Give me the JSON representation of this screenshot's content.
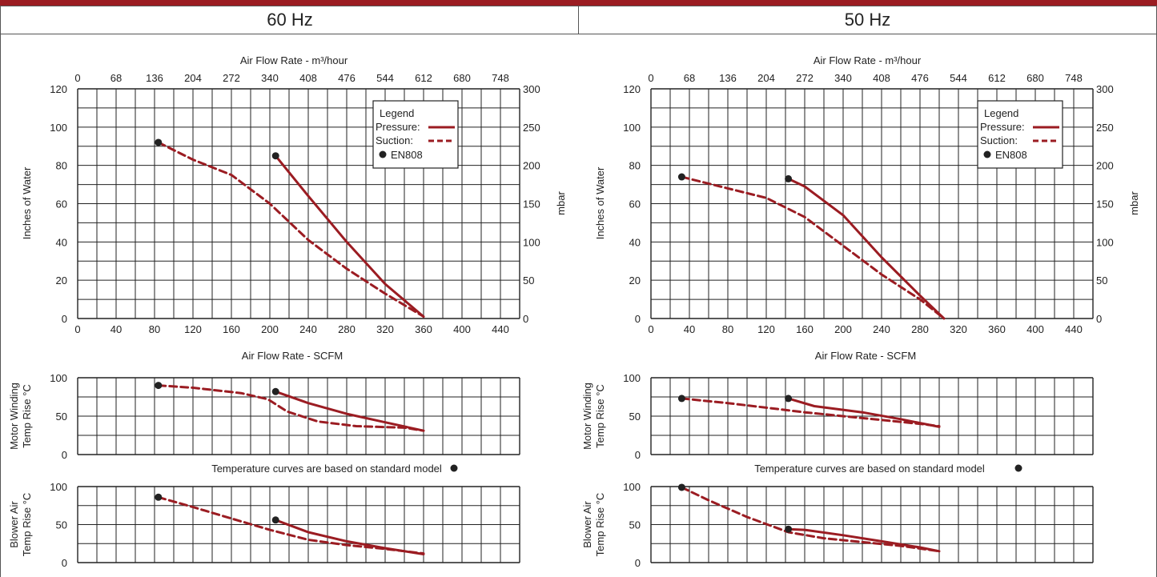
{
  "header": {
    "left_title": "60 Hz",
    "right_title": "50 Hz"
  },
  "colors": {
    "curve": "#9b1c22",
    "grid": "#222222",
    "marker": "#222222"
  },
  "chart_data": [
    {
      "panel": "60 Hz",
      "type": "line",
      "top_axis_label": "Air Flow Rate - m³/hour",
      "top_ticks": [
        "0",
        "68",
        "136",
        "204",
        "272",
        "340",
        "408",
        "476",
        "544",
        "612",
        "680",
        "748"
      ],
      "bottom_axis_label": "Air Flow Rate - SCFM",
      "bottom_ticks": [
        "0",
        "40",
        "80",
        "120",
        "160",
        "200",
        "240",
        "280",
        "320",
        "360",
        "400",
        "440"
      ],
      "xlim": [
        0,
        460
      ],
      "ylabel": "Inches of Water",
      "ylim": [
        0,
        120
      ],
      "yticks": [
        "0",
        "20",
        "40",
        "60",
        "80",
        "100",
        "120"
      ],
      "right_label": "mbar",
      "right_ticks": [
        "0",
        "50",
        "100",
        "150",
        "200",
        "250",
        "300"
      ],
      "legend": {
        "title": "Legend",
        "pressure": "Pressure:",
        "suction": "Suction:",
        "marker": "EN808",
        "placement": "top-right"
      },
      "series": [
        {
          "name": "Pressure:",
          "style": "solid",
          "points": [
            [
              206,
              85
            ],
            [
              240,
              64
            ],
            [
              280,
              40
            ],
            [
              320,
              18
            ],
            [
              360,
              1
            ]
          ]
        },
        {
          "name": "Suction:",
          "style": "dashed",
          "points": [
            [
              84,
              92
            ],
            [
              120,
              83
            ],
            [
              160,
              75
            ],
            [
              200,
              60
            ],
            [
              240,
              41
            ],
            [
              280,
              26
            ],
            [
              320,
              13
            ],
            [
              360,
              1
            ]
          ]
        }
      ],
      "markers": [
        [
          84,
          92
        ],
        [
          206,
          85
        ]
      ]
    },
    {
      "panel": "60 Hz",
      "type": "line",
      "ylabel_lines": [
        "Motor Winding",
        "Temp Rise °C"
      ],
      "ylim": [
        0,
        100
      ],
      "yticks": [
        "0",
        "50",
        "100"
      ],
      "xlim": [
        0,
        460
      ],
      "series": [
        {
          "name": "Pressure:",
          "style": "solid",
          "points": [
            [
              206,
              82
            ],
            [
              240,
              67
            ],
            [
              280,
              53
            ],
            [
              320,
              42
            ],
            [
              360,
              31
            ]
          ]
        },
        {
          "name": "Suction:",
          "style": "dashed",
          "points": [
            [
              84,
              90
            ],
            [
              120,
              87
            ],
            [
              170,
              80
            ],
            [
              198,
              72
            ],
            [
              218,
              56
            ],
            [
              250,
              43
            ],
            [
              290,
              37
            ],
            [
              340,
              35
            ],
            [
              360,
              31
            ]
          ]
        }
      ],
      "markers": [
        [
          84,
          90
        ],
        [
          206,
          82
        ]
      ]
    },
    {
      "panel": "60 Hz",
      "type": "line",
      "ylabel_lines": [
        "Blower Air",
        "Temp Rise °C"
      ],
      "ylim": [
        0,
        100
      ],
      "yticks": [
        "0",
        "50",
        "100"
      ],
      "xlim": [
        0,
        460
      ],
      "series": [
        {
          "name": "Pressure:",
          "style": "solid",
          "points": [
            [
              206,
              56
            ],
            [
              240,
              40
            ],
            [
              280,
              28
            ],
            [
              320,
              19
            ],
            [
              360,
              11
            ]
          ]
        },
        {
          "name": "Suction:",
          "style": "dashed",
          "points": [
            [
              84,
              86
            ],
            [
              120,
              73
            ],
            [
              160,
              58
            ],
            [
              200,
              43
            ],
            [
              240,
              30
            ],
            [
              280,
              23
            ],
            [
              320,
              18
            ],
            [
              360,
              12
            ]
          ]
        }
      ],
      "markers": [
        [
          84,
          86
        ],
        [
          206,
          56
        ]
      ]
    },
    {
      "panel": "50 Hz",
      "type": "line",
      "top_axis_label": "Air Flow Rate - m³/hour",
      "top_ticks": [
        "0",
        "68",
        "136",
        "204",
        "272",
        "340",
        "408",
        "476",
        "544",
        "612",
        "680",
        "748"
      ],
      "bottom_axis_label": "Air Flow Rate - SCFM",
      "bottom_ticks": [
        "0",
        "40",
        "80",
        "120",
        "160",
        "200",
        "240",
        "280",
        "320",
        "360",
        "400",
        "440"
      ],
      "xlim": [
        0,
        460
      ],
      "ylabel": "Inches of Water",
      "ylim": [
        0,
        120
      ],
      "yticks": [
        "0",
        "20",
        "40",
        "60",
        "80",
        "100",
        "120"
      ],
      "right_label": "mbar",
      "right_ticks": [
        "0",
        "50",
        "100",
        "150",
        "200",
        "250",
        "300"
      ],
      "legend": {
        "title": "Legend",
        "pressure": "Pressure:",
        "suction": "Suction:",
        "marker": "EN808",
        "placement": "top-right"
      },
      "series": [
        {
          "name": "Pressure:",
          "style": "solid",
          "points": [
            [
              143,
              73
            ],
            [
              160,
              69
            ],
            [
              200,
              54
            ],
            [
              240,
              32
            ],
            [
              280,
              12
            ],
            [
              305,
              0
            ]
          ]
        },
        {
          "name": "Suction:",
          "style": "dashed",
          "points": [
            [
              32,
              74
            ],
            [
              80,
              68
            ],
            [
              120,
              63
            ],
            [
              160,
              53
            ],
            [
              200,
              38
            ],
            [
              240,
              23
            ],
            [
              280,
              10
            ],
            [
              305,
              0
            ]
          ]
        }
      ],
      "markers": [
        [
          32,
          74
        ],
        [
          143,
          73
        ]
      ]
    },
    {
      "panel": "50 Hz",
      "type": "line",
      "ylabel_lines": [
        "Motor Winding",
        "Temp Rise °C"
      ],
      "ylim": [
        0,
        100
      ],
      "yticks": [
        "0",
        "50",
        "100"
      ],
      "xlim": [
        0,
        460
      ],
      "series": [
        {
          "name": "Pressure:",
          "style": "solid",
          "points": [
            [
              143,
              73
            ],
            [
              170,
              63
            ],
            [
              220,
              55
            ],
            [
              260,
              46
            ],
            [
              300,
              36
            ]
          ]
        },
        {
          "name": "Suction:",
          "style": "dashed",
          "points": [
            [
              32,
              73
            ],
            [
              80,
              67
            ],
            [
              120,
              61
            ],
            [
              160,
              55
            ],
            [
              200,
              50
            ],
            [
              240,
              45
            ],
            [
              280,
              40
            ],
            [
              300,
              37
            ]
          ]
        }
      ],
      "markers": [
        [
          32,
          73
        ],
        [
          143,
          73
        ]
      ]
    },
    {
      "panel": "50 Hz",
      "type": "line",
      "ylabel_lines": [
        "Blower Air",
        "Temp Rise °C"
      ],
      "ylim": [
        0,
        100
      ],
      "yticks": [
        "0",
        "50",
        "100"
      ],
      "xlim": [
        0,
        460
      ],
      "series": [
        {
          "name": "Pressure:",
          "style": "solid",
          "points": [
            [
              143,
              44
            ],
            [
              160,
              43
            ],
            [
              200,
              36
            ],
            [
              240,
              28
            ],
            [
              280,
              20
            ],
            [
              300,
              15
            ]
          ]
        },
        {
          "name": "Suction:",
          "style": "dashed",
          "points": [
            [
              32,
              99
            ],
            [
              60,
              82
            ],
            [
              100,
              60
            ],
            [
              143,
              40
            ],
            [
              180,
              32
            ],
            [
              220,
              27
            ],
            [
              260,
              22
            ],
            [
              300,
              15
            ]
          ]
        }
      ],
      "markers": [
        [
          32,
          99
        ],
        [
          143,
          44
        ]
      ]
    }
  ],
  "notes": [
    {
      "panel": "60 Hz",
      "text": "Temperature curves are based on standard model"
    },
    {
      "panel": "50 Hz",
      "text": "Temperature curves are based on standard model"
    }
  ]
}
